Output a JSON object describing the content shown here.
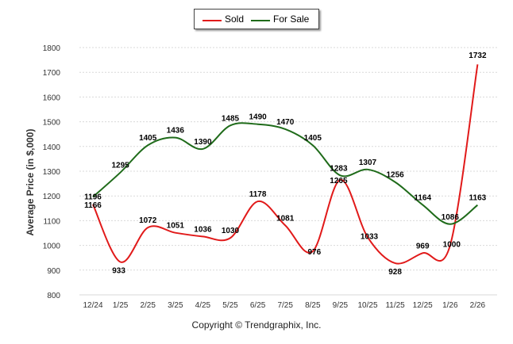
{
  "legend": {
    "sold": "Sold",
    "for_sale": "For Sale"
  },
  "footer": {
    "copyright": "Copyright © Trendgraphix, Inc."
  },
  "colors": {
    "sold": "#e11a1a",
    "for_sale": "#1f6b1a",
    "grid": "#d9d9d9",
    "axis_text": "#333333"
  },
  "chart_data": {
    "type": "line",
    "title": "",
    "xlabel": "",
    "ylabel": "Average Price (in $,000)",
    "ylim": [
      800,
      1800
    ],
    "yticks": [
      800,
      900,
      1000,
      1100,
      1200,
      1300,
      1400,
      1500,
      1600,
      1700,
      1800
    ],
    "categories": [
      "12/24",
      "1/25",
      "2/25",
      "3/25",
      "4/25",
      "5/25",
      "6/25",
      "7/25",
      "8/25",
      "9/25",
      "10/25",
      "11/25",
      "12/25",
      "1/26",
      "2/26"
    ],
    "series": [
      {
        "name": "Sold",
        "values": [
          1166,
          933,
          1072,
          1051,
          1036,
          1030,
          1178,
          1081,
          976,
          1265,
          1033,
          928,
          969,
          1000,
          1732
        ]
      },
      {
        "name": "For Sale",
        "values": [
          1196,
          1295,
          1405,
          1436,
          1390,
          1485,
          1490,
          1470,
          1405,
          1283,
          1307,
          1256,
          1164,
          1086,
          1163
        ]
      }
    ]
  }
}
